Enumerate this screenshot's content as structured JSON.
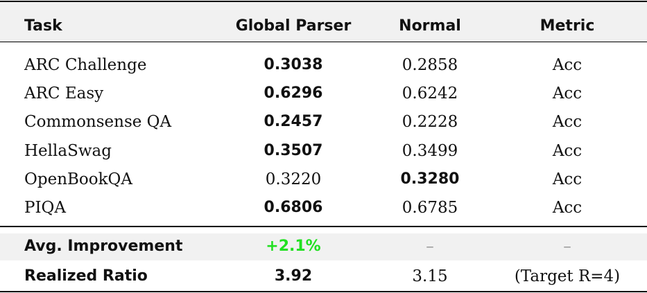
{
  "table": {
    "header": [
      "Task",
      "Global Parser",
      "Normal",
      "Metric"
    ],
    "rows": [
      [
        "ARC Challenge",
        {
          "text": "0.3038",
          "bold": true
        },
        "0.2858",
        "Acc"
      ],
      [
        "ARC Easy",
        {
          "text": "0.6296",
          "bold": true
        },
        "0.6242",
        "Acc"
      ],
      [
        "Commonsense QA",
        {
          "text": "0.2457",
          "bold": true
        },
        "0.2228",
        "Acc"
      ],
      [
        "HellaSwag",
        {
          "text": "0.3507",
          "bold": true
        },
        "0.3499",
        "Acc"
      ],
      [
        "OpenBookQA",
        "0.3220",
        {
          "text": "0.3280",
          "bold": true
        },
        "Acc"
      ],
      [
        "PIQA",
        {
          "text": "0.6806",
          "bold": true
        },
        "0.6785",
        "Acc"
      ]
    ],
    "summary": [
      [
        {
          "text": "Avg. Improvement",
          "bold": true
        },
        {
          "text": "+2.1%",
          "bold": true,
          "color": "#22e022"
        },
        {
          "text": "–",
          "color": "#999999"
        },
        {
          "text": "–",
          "color": "#999999"
        }
      ],
      [
        {
          "text": "Realized Ratio",
          "bold": true
        },
        {
          "text": "3.92",
          "bold": true
        },
        "3.15",
        "(Target R=4)"
      ]
    ]
  }
}
